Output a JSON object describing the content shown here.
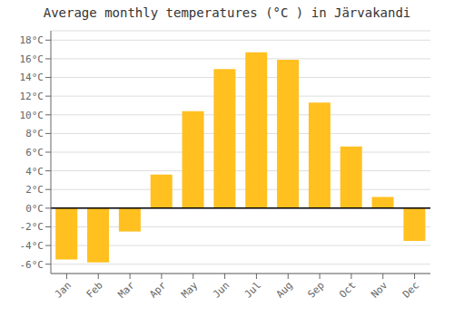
{
  "chart_data": {
    "type": "bar",
    "title": "Average monthly temperatures (°C ) in Järvakandi",
    "categories": [
      "Jan",
      "Feb",
      "Mar",
      "Apr",
      "May",
      "Jun",
      "Jul",
      "Aug",
      "Sep",
      "Oct",
      "Nov",
      "Dec"
    ],
    "values": [
      -5.5,
      -5.8,
      -2.5,
      3.6,
      10.4,
      14.9,
      16.7,
      15.9,
      11.3,
      6.6,
      1.2,
      -3.5
    ],
    "color": "#FFC020",
    "ylim": [
      -7,
      19
    ],
    "yticks": [
      {
        "value": -6,
        "label": "-6°C"
      },
      {
        "value": -4,
        "label": "-4°C"
      },
      {
        "value": -2,
        "label": "-2°C"
      },
      {
        "value": 0,
        "label": "0°C"
      },
      {
        "value": 2,
        "label": "2°C"
      },
      {
        "value": 4,
        "label": "4°C"
      },
      {
        "value": 6,
        "label": "6°C"
      },
      {
        "value": 8,
        "label": "8°C"
      },
      {
        "value": 10,
        "label": "10°C"
      },
      {
        "value": 12,
        "label": "12°C"
      },
      {
        "value": 14,
        "label": "14°C"
      },
      {
        "value": 16,
        "label": "16°C"
      },
      {
        "value": 18,
        "label": "18°C"
      }
    ],
    "grid": true
  }
}
